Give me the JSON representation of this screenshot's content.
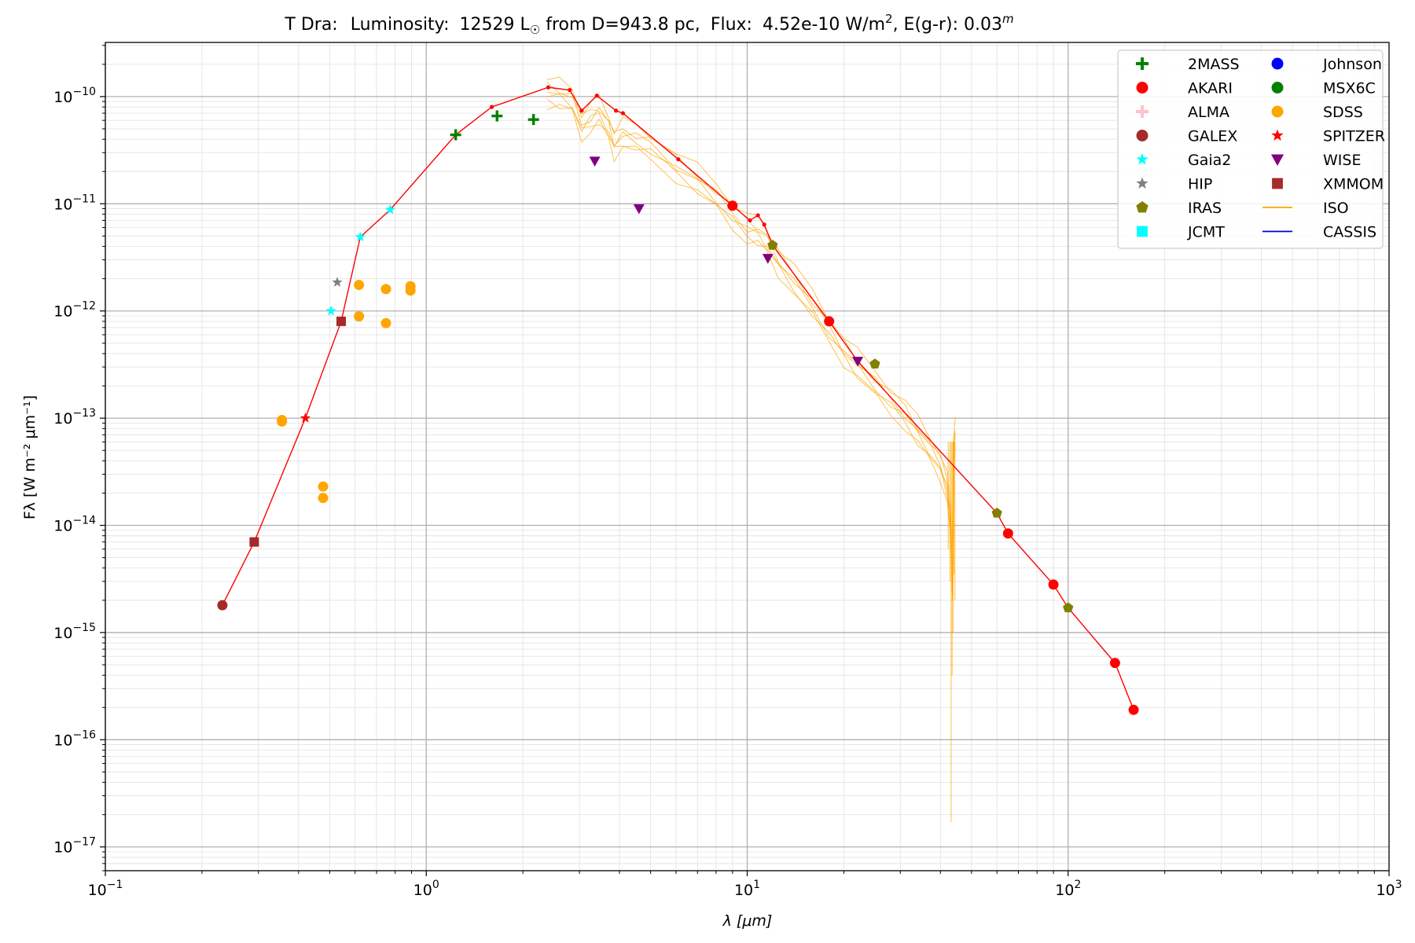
{
  "chart_data": {
    "type": "scatter",
    "title_parts": {
      "star": "T Dra:",
      "lum_label": "Luminosity:",
      "lum_value": "12529 L",
      "lum_sym": "☉",
      "dist": " from D=943.8 pc,",
      "flux_label": "Flux:",
      "flux_value": "4.52e-10 W/m",
      "flux_exp": "2",
      "ext_label": ", E(g-r): 0.03",
      "ext_exp": "m"
    },
    "xlabel": "λ [μm]",
    "ylabel": "Fλ [W m⁻² μm⁻¹]",
    "x_scale": "log",
    "y_scale": "log",
    "xlim": [
      0.1,
      1000
    ],
    "ylim": [
      6e-18,
      3.2e-10
    ],
    "grid": true,
    "x_ticks": [
      {
        "v": 0.1,
        "b": "10",
        "e": "−1"
      },
      {
        "v": 1,
        "b": "10",
        "e": "0"
      },
      {
        "v": 10,
        "b": "10",
        "e": "1"
      },
      {
        "v": 100,
        "b": "10",
        "e": "2"
      },
      {
        "v": 1000,
        "b": "10",
        "e": "3"
      }
    ],
    "y_ticks": [
      {
        "v": 1e-17,
        "b": "10",
        "e": "−17"
      },
      {
        "v": 1e-16,
        "b": "10",
        "e": "−16"
      },
      {
        "v": 1e-15,
        "b": "10",
        "e": "−15"
      },
      {
        "v": 1e-14,
        "b": "10",
        "e": "−14"
      },
      {
        "v": 1e-13,
        "b": "10",
        "e": "−13"
      },
      {
        "v": 1e-12,
        "b": "10",
        "e": "−12"
      },
      {
        "v": 1e-11,
        "b": "10",
        "e": "−11"
      },
      {
        "v": 1e-10,
        "b": "10",
        "e": "−10"
      }
    ],
    "legend_position": "top-right",
    "legend": [
      {
        "name": "2MASS",
        "marker": "plus",
        "color": "#008000"
      },
      {
        "name": "AKARI",
        "marker": "circle",
        "color": "#ff0000"
      },
      {
        "name": "ALMA",
        "marker": "plus",
        "color": "#ffc0cb"
      },
      {
        "name": "GALEX",
        "marker": "circle",
        "color": "#a52a2a"
      },
      {
        "name": "Gaia2",
        "marker": "star",
        "color": "#00ffff"
      },
      {
        "name": "HIP",
        "marker": "star",
        "color": "#808080"
      },
      {
        "name": "IRAS",
        "marker": "pentagon",
        "color": "#808000"
      },
      {
        "name": "JCMT",
        "marker": "square",
        "color": "#00ffff"
      },
      {
        "name": "Johnson",
        "marker": "circle",
        "color": "#0000ff"
      },
      {
        "name": "MSX6C",
        "marker": "circle",
        "color": "#008000"
      },
      {
        "name": "SDSS",
        "marker": "circle",
        "color": "#ffa500"
      },
      {
        "name": "SPITZER",
        "marker": "star",
        "color": "#ff0000"
      },
      {
        "name": "WISE",
        "marker": "triangle-down",
        "color": "#800080"
      },
      {
        "name": "XMMOM",
        "marker": "square",
        "color": "#a52a2a"
      },
      {
        "name": "ISO",
        "marker": "line",
        "color": "#ffa500"
      },
      {
        "name": "CASSIS",
        "marker": "line",
        "color": "#0000cd"
      }
    ],
    "series": [
      {
        "name": "2MASS",
        "marker": "plus",
        "color": "#008000",
        "points": [
          [
            1.235,
            4.4e-11
          ],
          [
            1.662,
            6.6e-11
          ],
          [
            2.159,
            6.1e-11
          ]
        ]
      },
      {
        "name": "AKARI",
        "marker": "circle",
        "color": "#ff0000",
        "points": [
          [
            9.0,
            9.6e-12
          ],
          [
            18.0,
            8e-13
          ],
          [
            65.0,
            8.4e-15
          ],
          [
            90.0,
            2.8e-15
          ],
          [
            140.0,
            5.2e-16
          ],
          [
            160.0,
            1.9e-16
          ]
        ]
      },
      {
        "name": "GALEX",
        "marker": "circle",
        "color": "#a52a2a",
        "points": [
          [
            0.2316,
            1.8e-15
          ]
        ]
      },
      {
        "name": "Gaia2",
        "marker": "star",
        "color": "#00ffff",
        "points": [
          [
            0.505,
            1e-12
          ],
          [
            0.623,
            4.9e-12
          ],
          [
            0.772,
            8.8e-12
          ]
        ]
      },
      {
        "name": "HIP",
        "marker": "star",
        "color": "#808080",
        "points": [
          [
            0.528,
            1.85e-12
          ]
        ]
      },
      {
        "name": "IRAS",
        "marker": "pentagon",
        "color": "#808000",
        "points": [
          [
            12.0,
            4.1e-12
          ],
          [
            25.0,
            3.2e-13
          ],
          [
            60.0,
            1.3e-14
          ],
          [
            100.0,
            1.7e-15
          ]
        ]
      },
      {
        "name": "SDSS",
        "marker": "circle",
        "color": "#ffa500",
        "points": [
          [
            0.355,
            9.6e-14
          ],
          [
            0.355,
            9.3e-14
          ],
          [
            0.477,
            2.3e-14
          ],
          [
            0.477,
            1.8e-14
          ],
          [
            0.617,
            1.75e-12
          ],
          [
            0.617,
            8.9e-13
          ],
          [
            0.749,
            1.6e-12
          ],
          [
            0.749,
            7.7e-13
          ],
          [
            0.893,
            1.7e-12
          ],
          [
            0.893,
            1.55e-12
          ]
        ]
      },
      {
        "name": "SPITZER",
        "marker": "star",
        "color": "#ff0000",
        "points": [
          [
            0.42,
            1e-13
          ]
        ]
      },
      {
        "name": "WISE",
        "marker": "triangle-down",
        "color": "#800080",
        "points": [
          [
            3.35,
            2.5e-11
          ],
          [
            4.6,
            9e-12
          ],
          [
            11.6,
            3.1e-12
          ],
          [
            22.1,
            3.4e-13
          ]
        ]
      },
      {
        "name": "XMMOM",
        "marker": "square",
        "color": "#a52a2a",
        "points": [
          [
            0.291,
            7e-15
          ],
          [
            0.543,
            8e-13
          ]
        ]
      }
    ],
    "sed_line": {
      "color": "#ff0000",
      "points": [
        [
          0.2316,
          1.8e-15
        ],
        [
          0.291,
          7e-15
        ],
        [
          0.42,
          1e-13
        ],
        [
          0.543,
          8e-13
        ],
        [
          0.623,
          4.9e-12
        ],
        [
          0.772,
          8.8e-12
        ],
        [
          1.235,
          4.4e-11
        ],
        [
          1.6,
          8e-11
        ],
        [
          2.4,
          1.22e-10
        ],
        [
          2.8,
          1.15e-10
        ],
        [
          3.05,
          7.4e-11
        ],
        [
          3.4,
          1.02e-10
        ],
        [
          3.9,
          7.4e-11
        ],
        [
          4.1,
          7e-11
        ],
        [
          6.1,
          2.6e-11
        ],
        [
          9.0,
          9.6e-12
        ],
        [
          10.2,
          7e-12
        ],
        [
          10.8,
          7.8e-12
        ],
        [
          11.3,
          6.4e-12
        ],
        [
          12.0,
          4.1e-12
        ],
        [
          18.0,
          8e-13
        ],
        [
          22.1,
          3.4e-13
        ],
        [
          60.0,
          1.3e-14
        ],
        [
          65.0,
          8.4e-15
        ],
        [
          90.0,
          2.8e-15
        ],
        [
          100.0,
          1.7e-15
        ],
        [
          140.0,
          5.2e-16
        ],
        [
          160.0,
          1.9e-16
        ]
      ]
    },
    "iso_spectra": {
      "name": "ISO",
      "color": "#ffa500",
      "scales": [
        1.15,
        1.0,
        0.9,
        0.82,
        0.74,
        0.67
      ],
      "profile": [
        [
          2.38,
          1.25e-10
        ],
        [
          2.6,
          1.18e-10
        ],
        [
          2.85,
          1.05e-10
        ],
        [
          3.05,
          6.2e-11
        ],
        [
          3.25,
          7.3e-11
        ],
        [
          3.45,
          8.3e-11
        ],
        [
          3.7,
          6e-11
        ],
        [
          3.85,
          4.2e-11
        ],
        [
          4.1,
          5.1e-11
        ],
        [
          4.5,
          4.6e-11
        ],
        [
          5.0,
          4e-11
        ],
        [
          6.0,
          2.6e-11
        ],
        [
          7.0,
          1.9e-11
        ],
        [
          8.0,
          1.35e-11
        ],
        [
          9.0,
          9.2e-12
        ],
        [
          10.0,
          6.8e-12
        ],
        [
          10.8,
          6.2e-12
        ],
        [
          11.5,
          5.2e-12
        ],
        [
          12.5,
          3.4e-12
        ],
        [
          14.0,
          2.2e-12
        ],
        [
          16.0,
          1.3e-12
        ],
        [
          18.0,
          7.8e-13
        ],
        [
          20.0,
          5e-13
        ],
        [
          22.0,
          3.6e-13
        ],
        [
          25.0,
          2.4e-13
        ],
        [
          28.0,
          1.7e-13
        ],
        [
          31.0,
          1.25e-13
        ],
        [
          34.0,
          8.5e-14
        ],
        [
          37.0,
          6e-14
        ],
        [
          40.0,
          4.2e-14
        ],
        [
          42.0,
          2.6e-14
        ],
        [
          43.0,
          1.2e-14
        ],
        [
          43.6,
          3e-15
        ],
        [
          44.0,
          6e-14
        ],
        [
          44.5,
          8e-14
        ]
      ]
    }
  }
}
